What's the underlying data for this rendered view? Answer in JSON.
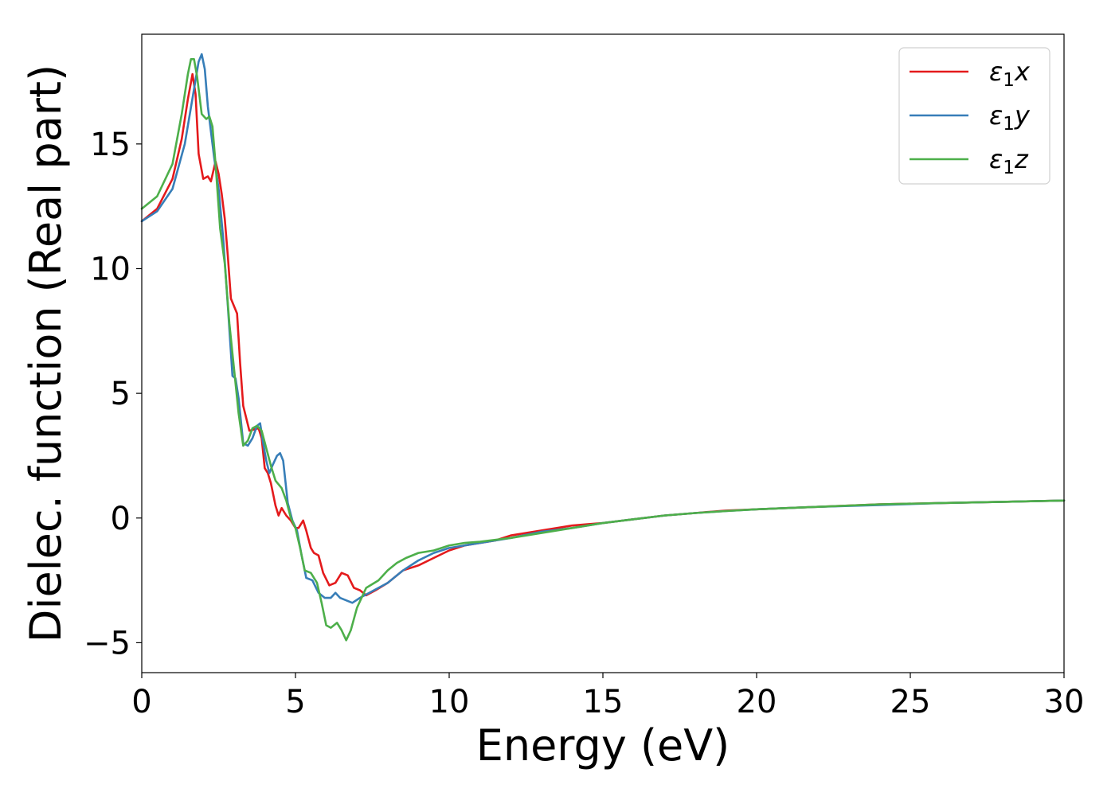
{
  "chart_data": {
    "type": "line",
    "title": "",
    "xlabel": "Energy (eV)",
    "ylabel": "Dielec. function (Real part)",
    "xlim": [
      0,
      30
    ],
    "ylim": [
      -6.2,
      19.4
    ],
    "xticks": [
      0,
      5,
      10,
      15,
      20,
      25,
      30
    ],
    "yticks": [
      -5,
      0,
      5,
      10,
      15
    ],
    "xtick_labels": [
      "0",
      "5",
      "10",
      "15",
      "20",
      "25",
      "30"
    ],
    "ytick_labels": [
      "−5",
      "0",
      "5",
      "10",
      "15"
    ],
    "grid": false,
    "legend": {
      "position": "top-right"
    },
    "series": [
      {
        "name": "ε1x",
        "symbol": "ε",
        "sub": "1",
        "axis_letter": "x",
        "color": "#e41a1c",
        "points": [
          [
            0,
            11.9
          ],
          [
            0.5,
            12.4
          ],
          [
            1.0,
            13.6
          ],
          [
            1.3,
            15.2
          ],
          [
            1.5,
            16.8
          ],
          [
            1.65,
            17.8
          ],
          [
            1.75,
            17.0
          ],
          [
            1.85,
            14.6
          ],
          [
            2.0,
            13.6
          ],
          [
            2.15,
            13.7
          ],
          [
            2.25,
            13.5
          ],
          [
            2.4,
            14.3
          ],
          [
            2.5,
            13.8
          ],
          [
            2.6,
            13.0
          ],
          [
            2.7,
            12.0
          ],
          [
            2.8,
            10.5
          ],
          [
            2.9,
            8.8
          ],
          [
            3.0,
            8.5
          ],
          [
            3.1,
            8.2
          ],
          [
            3.2,
            6.2
          ],
          [
            3.3,
            4.5
          ],
          [
            3.5,
            3.5
          ],
          [
            3.8,
            3.6
          ],
          [
            3.9,
            3.2
          ],
          [
            4.0,
            2.0
          ],
          [
            4.1,
            1.8
          ],
          [
            4.2,
            1.4
          ],
          [
            4.35,
            0.5
          ],
          [
            4.45,
            0.1
          ],
          [
            4.55,
            0.4
          ],
          [
            4.7,
            0.1
          ],
          [
            4.85,
            -0.1
          ],
          [
            5.0,
            -0.4
          ],
          [
            5.1,
            -0.4
          ],
          [
            5.25,
            -0.1
          ],
          [
            5.35,
            -0.5
          ],
          [
            5.5,
            -1.2
          ],
          [
            5.6,
            -1.4
          ],
          [
            5.75,
            -1.5
          ],
          [
            5.9,
            -2.2
          ],
          [
            6.1,
            -2.7
          ],
          [
            6.3,
            -2.6
          ],
          [
            6.5,
            -2.2
          ],
          [
            6.7,
            -2.3
          ],
          [
            6.9,
            -2.8
          ],
          [
            7.1,
            -2.9
          ],
          [
            7.3,
            -3.1
          ],
          [
            7.6,
            -2.9
          ],
          [
            8.0,
            -2.6
          ],
          [
            8.5,
            -2.1
          ],
          [
            9.0,
            -1.9
          ],
          [
            9.5,
            -1.6
          ],
          [
            10.0,
            -1.3
          ],
          [
            10.5,
            -1.1
          ],
          [
            11.0,
            -1.0
          ],
          [
            11.5,
            -0.9
          ],
          [
            12.0,
            -0.7
          ],
          [
            12.5,
            -0.6
          ],
          [
            13.0,
            -0.5
          ],
          [
            13.5,
            -0.4
          ],
          [
            14.0,
            -0.3
          ],
          [
            14.5,
            -0.25
          ],
          [
            15.0,
            -0.2
          ],
          [
            16.0,
            -0.05
          ],
          [
            17.0,
            0.1
          ],
          [
            18.0,
            0.2
          ],
          [
            19.0,
            0.3
          ],
          [
            20.0,
            0.35
          ],
          [
            22.0,
            0.45
          ],
          [
            24.0,
            0.55
          ],
          [
            26.0,
            0.6
          ],
          [
            28.0,
            0.65
          ],
          [
            30.0,
            0.7
          ]
        ]
      },
      {
        "name": "ε1y",
        "symbol": "ε",
        "sub": "1",
        "axis_letter": "y",
        "color": "#377eb8",
        "points": [
          [
            0,
            11.9
          ],
          [
            0.5,
            12.3
          ],
          [
            1.0,
            13.2
          ],
          [
            1.4,
            15.0
          ],
          [
            1.7,
            17.2
          ],
          [
            1.85,
            18.3
          ],
          [
            1.95,
            18.6
          ],
          [
            2.05,
            18.0
          ],
          [
            2.15,
            16.5
          ],
          [
            2.25,
            15.5
          ],
          [
            2.35,
            14.5
          ],
          [
            2.5,
            13.2
          ],
          [
            2.65,
            11.2
          ],
          [
            2.8,
            8.5
          ],
          [
            2.95,
            5.7
          ],
          [
            3.05,
            5.6
          ],
          [
            3.15,
            4.8
          ],
          [
            3.3,
            3.0
          ],
          [
            3.45,
            2.9
          ],
          [
            3.6,
            3.2
          ],
          [
            3.75,
            3.7
          ],
          [
            3.85,
            3.8
          ],
          [
            3.95,
            3.0
          ],
          [
            4.05,
            2.3
          ],
          [
            4.15,
            1.8
          ],
          [
            4.25,
            2.1
          ],
          [
            4.4,
            2.5
          ],
          [
            4.5,
            2.6
          ],
          [
            4.6,
            2.3
          ],
          [
            4.75,
            0.6
          ],
          [
            4.9,
            -0.1
          ],
          [
            5.05,
            -0.5
          ],
          [
            5.2,
            -1.5
          ],
          [
            5.35,
            -2.4
          ],
          [
            5.55,
            -2.5
          ],
          [
            5.75,
            -3.0
          ],
          [
            5.95,
            -3.2
          ],
          [
            6.15,
            -3.2
          ],
          [
            6.3,
            -3.0
          ],
          [
            6.45,
            -3.2
          ],
          [
            6.65,
            -3.3
          ],
          [
            6.85,
            -3.4
          ],
          [
            7.1,
            -3.2
          ],
          [
            7.4,
            -3.0
          ],
          [
            8.0,
            -2.6
          ],
          [
            8.5,
            -2.1
          ],
          [
            9.0,
            -1.7
          ],
          [
            9.5,
            -1.4
          ],
          [
            10.0,
            -1.2
          ],
          [
            10.5,
            -1.1
          ],
          [
            11.0,
            -1.0
          ],
          [
            12.0,
            -0.8
          ],
          [
            13.0,
            -0.55
          ],
          [
            14.0,
            -0.4
          ],
          [
            15.0,
            -0.2
          ],
          [
            16.0,
            -0.05
          ],
          [
            17.0,
            0.1
          ],
          [
            18.0,
            0.2
          ],
          [
            19.0,
            0.28
          ],
          [
            20.0,
            0.35
          ],
          [
            22.0,
            0.45
          ],
          [
            24.0,
            0.52
          ],
          [
            26.0,
            0.6
          ],
          [
            28.0,
            0.65
          ],
          [
            30.0,
            0.7
          ]
        ]
      },
      {
        "name": "ε1z",
        "symbol": "ε",
        "sub": "1",
        "axis_letter": "z",
        "color": "#4daf4a",
        "points": [
          [
            0,
            12.4
          ],
          [
            0.5,
            12.9
          ],
          [
            1.0,
            14.2
          ],
          [
            1.3,
            16.2
          ],
          [
            1.5,
            17.8
          ],
          [
            1.6,
            18.4
          ],
          [
            1.7,
            18.4
          ],
          [
            1.8,
            17.7
          ],
          [
            1.95,
            16.2
          ],
          [
            2.1,
            16.0
          ],
          [
            2.2,
            16.1
          ],
          [
            2.3,
            15.7
          ],
          [
            2.4,
            14.2
          ],
          [
            2.55,
            11.6
          ],
          [
            2.7,
            10.2
          ],
          [
            2.85,
            7.8
          ],
          [
            3.0,
            6.0
          ],
          [
            3.15,
            4.2
          ],
          [
            3.3,
            2.9
          ],
          [
            3.45,
            3.1
          ],
          [
            3.6,
            3.6
          ],
          [
            3.75,
            3.7
          ],
          [
            3.9,
            3.5
          ],
          [
            4.05,
            2.8
          ],
          [
            4.2,
            2.1
          ],
          [
            4.35,
            1.5
          ],
          [
            4.55,
            1.2
          ],
          [
            4.7,
            0.7
          ],
          [
            4.85,
            0.0
          ],
          [
            5.0,
            -0.4
          ],
          [
            5.15,
            -1.2
          ],
          [
            5.3,
            -2.1
          ],
          [
            5.5,
            -2.2
          ],
          [
            5.7,
            -2.6
          ],
          [
            5.85,
            -3.4
          ],
          [
            6.0,
            -4.3
          ],
          [
            6.15,
            -4.4
          ],
          [
            6.35,
            -4.2
          ],
          [
            6.5,
            -4.5
          ],
          [
            6.65,
            -4.9
          ],
          [
            6.8,
            -4.5
          ],
          [
            7.0,
            -3.6
          ],
          [
            7.3,
            -2.8
          ],
          [
            7.7,
            -2.5
          ],
          [
            8.0,
            -2.1
          ],
          [
            8.3,
            -1.8
          ],
          [
            8.6,
            -1.6
          ],
          [
            9.0,
            -1.4
          ],
          [
            9.5,
            -1.3
          ],
          [
            10.0,
            -1.1
          ],
          [
            10.5,
            -1.0
          ],
          [
            11.0,
            -0.95
          ],
          [
            12.0,
            -0.8
          ],
          [
            13.0,
            -0.6
          ],
          [
            14.0,
            -0.4
          ],
          [
            15.0,
            -0.2
          ],
          [
            16.0,
            -0.05
          ],
          [
            17.0,
            0.1
          ],
          [
            18.0,
            0.2
          ],
          [
            19.0,
            0.28
          ],
          [
            20.0,
            0.35
          ],
          [
            22.0,
            0.45
          ],
          [
            24.0,
            0.55
          ],
          [
            26.0,
            0.6
          ],
          [
            28.0,
            0.65
          ],
          [
            30.0,
            0.7
          ]
        ]
      }
    ]
  }
}
